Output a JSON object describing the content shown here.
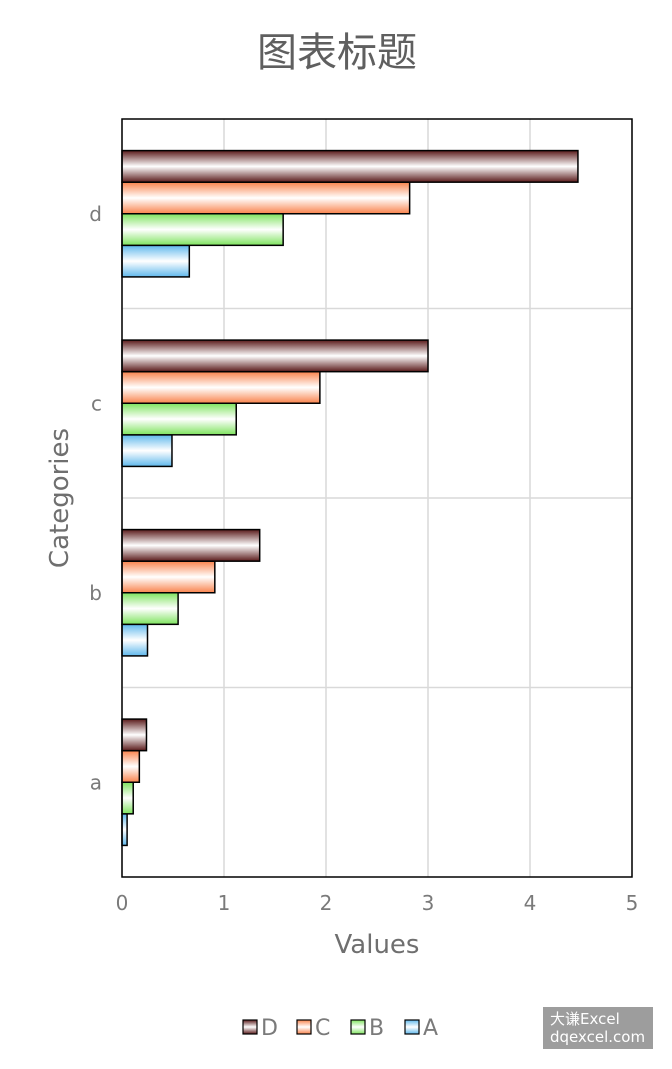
{
  "chart_data": {
    "type": "bar",
    "orientation": "horizontal",
    "title": "图表标题",
    "xlabel": "Values",
    "ylabel": "Categories",
    "xlim": [
      0,
      5
    ],
    "xticks": [
      "0",
      "1",
      "2",
      "3",
      "4",
      "5"
    ],
    "categories": [
      "a",
      "b",
      "c",
      "d"
    ],
    "series": [
      {
        "name": "A",
        "values": [
          0.05,
          0.25,
          0.49,
          0.66
        ]
      },
      {
        "name": "B",
        "values": [
          0.11,
          0.55,
          1.12,
          1.58
        ]
      },
      {
        "name": "C",
        "values": [
          0.17,
          0.91,
          1.94,
          2.82
        ]
      },
      {
        "name": "D",
        "values": [
          0.24,
          1.35,
          3.0,
          4.47
        ]
      }
    ],
    "legend_order": [
      "D",
      "C",
      "B",
      "A"
    ],
    "legend_position": "bottom",
    "grid": true,
    "colors": {
      "A": {
        "light": "#ffffff",
        "dark": "#5fb8ec"
      },
      "B": {
        "light": "#ffffff",
        "dark": "#7ee35e"
      },
      "C": {
        "light": "#ffffff",
        "dark": "#f9834c"
      },
      "D": {
        "light": "#ffffff",
        "dark": "#5a1a1a"
      },
      "gridline": "#d9d9d9",
      "plot_border": "#000000"
    }
  },
  "watermark": {
    "line1": "大谦Excel",
    "line2": "dqexcel.com"
  }
}
